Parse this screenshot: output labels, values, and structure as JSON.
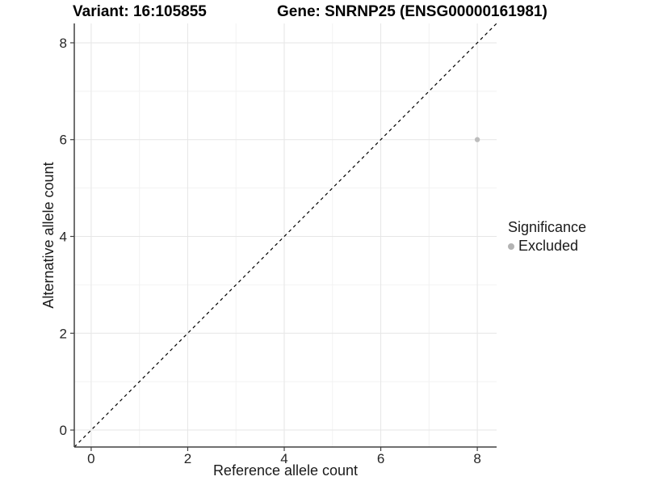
{
  "header": {
    "variant_title": "Variant: 16:105855",
    "gene_title": "Gene: SNRNP25 (ENSG00000161981)"
  },
  "chart_data": {
    "type": "scatter",
    "xlabel": "Reference allele count",
    "ylabel": "Alternative allele count",
    "xticks": [
      0,
      2,
      4,
      6,
      8
    ],
    "yticks": [
      0,
      2,
      4,
      6,
      8
    ],
    "minor_xticks": [
      1,
      3,
      5,
      7
    ],
    "minor_yticks": [
      1,
      3,
      5,
      7
    ],
    "xlim": [
      -0.35,
      8.4
    ],
    "ylim": [
      -0.35,
      8.4
    ],
    "grid": "major+minor",
    "points": [
      {
        "x": 8,
        "y": 6,
        "significance": "Excluded"
      }
    ],
    "identity_line": {
      "equation": "y = x",
      "style": "dashed",
      "color": "#000000"
    },
    "legend": {
      "title": "Significance",
      "position": "right",
      "items": [
        {
          "label": "Excluded",
          "color": "#b3b3b3"
        }
      ]
    },
    "colors": {
      "point": "#bdbdbd",
      "grid_major": "#e6e6e6",
      "grid_minor": "#f2f2f2",
      "axis_line": "#404040",
      "tick_text": "#262626",
      "background": "#ffffff"
    }
  }
}
